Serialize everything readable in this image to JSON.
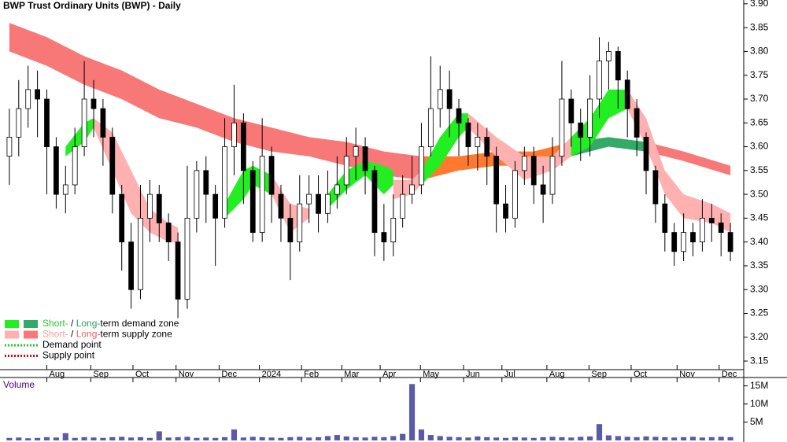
{
  "chart_data": {
    "type": "candlestick",
    "title": "BWP Trust Ordinary Units (BWP) - Daily",
    "xlim": [
      -1,
      78
    ],
    "xticks": [
      {
        "value": 4,
        "label": "Aug"
      },
      {
        "value": 8.7,
        "label": "Sep"
      },
      {
        "value": 13.2,
        "label": "Oct"
      },
      {
        "value": 17.8,
        "label": "Nov"
      },
      {
        "value": 22.4,
        "label": "Dec"
      },
      {
        "value": 26.7,
        "label": "2024"
      },
      {
        "value": 31.2,
        "label": "Feb"
      },
      {
        "value": 35.5,
        "label": "Mar"
      },
      {
        "value": 39.6,
        "label": "Apr"
      },
      {
        "value": 43.9,
        "label": "May"
      },
      {
        "value": 48.5,
        "label": "Jun"
      },
      {
        "value": 52.6,
        "label": "Jul"
      },
      {
        "value": 57.4,
        "label": "Aug"
      },
      {
        "value": 61.9,
        "label": "Sep"
      },
      {
        "value": 66.4,
        "label": "Oct"
      },
      {
        "value": 71.3,
        "label": "Nov"
      },
      {
        "value": 75.8,
        "label": "Dec"
      }
    ],
    "ylim": [
      3.132,
      3.908
    ],
    "yticks": [
      {
        "value": 3.9,
        "label": "3.90"
      },
      3.85,
      {
        "value": 3.8,
        "label": "3.80"
      },
      3.75,
      {
        "value": 3.7,
        "label": "3.70"
      },
      3.65,
      {
        "value": 3.6,
        "label": "3.60"
      },
      3.55,
      {
        "value": 3.5,
        "label": "3.50"
      },
      3.45,
      {
        "value": 3.4,
        "label": "3.40"
      },
      3.35,
      {
        "value": 3.3,
        "label": "3.30"
      },
      3.25,
      {
        "value": 3.2,
        "label": "3.20"
      },
      3.15
    ],
    "grid": false,
    "up_color": "#ffffff",
    "down_color": "#000000",
    "open": [
      3.58,
      3.62,
      3.68,
      3.72,
      3.7,
      3.6,
      3.5,
      3.52,
      3.6,
      3.7,
      3.68,
      3.62,
      3.5,
      3.4,
      3.3,
      3.45,
      3.5,
      3.44,
      3.4,
      3.28,
      3.45,
      3.55,
      3.5,
      3.45,
      3.6,
      3.65,
      3.55,
      3.42,
      3.58,
      3.5,
      3.45,
      3.4,
      3.48,
      3.5,
      3.46,
      3.5,
      3.52,
      3.58,
      3.6,
      3.55,
      3.42,
      3.4,
      3.45,
      3.5,
      3.52,
      3.6,
      3.68,
      3.72,
      3.68,
      3.65,
      3.6,
      3.62,
      3.58,
      3.48,
      3.45,
      3.55,
      3.58,
      3.52,
      3.5,
      3.58,
      3.7,
      3.65,
      3.62,
      3.7,
      3.78,
      3.8,
      3.74,
      3.68,
      3.62,
      3.55,
      3.48,
      3.42,
      3.38,
      3.42,
      3.4,
      3.45,
      3.44,
      3.42
    ],
    "high": [
      3.68,
      3.74,
      3.77,
      3.76,
      3.72,
      3.62,
      3.56,
      3.64,
      3.78,
      3.74,
      3.7,
      3.64,
      3.52,
      3.44,
      3.52,
      3.53,
      3.52,
      3.46,
      3.42,
      3.56,
      3.57,
      3.58,
      3.52,
      3.66,
      3.73,
      3.67,
      3.57,
      3.66,
      3.6,
      3.52,
      3.48,
      3.54,
      3.54,
      3.54,
      3.55,
      3.58,
      3.62,
      3.64,
      3.62,
      3.56,
      3.48,
      3.5,
      3.54,
      3.58,
      3.65,
      3.79,
      3.77,
      3.76,
      3.7,
      3.66,
      3.65,
      3.64,
      3.6,
      3.52,
      3.57,
      3.6,
      3.6,
      3.56,
      3.62,
      3.78,
      3.72,
      3.68,
      3.75,
      3.83,
      3.82,
      3.81,
      3.76,
      3.7,
      3.63,
      3.56,
      3.5,
      3.44,
      3.46,
      3.44,
      3.49,
      3.48,
      3.46,
      3.44
    ],
    "low": [
      3.52,
      3.58,
      3.64,
      3.62,
      3.5,
      3.47,
      3.46,
      3.5,
      3.58,
      3.62,
      3.56,
      3.46,
      3.34,
      3.26,
      3.28,
      3.4,
      3.4,
      3.36,
      3.24,
      3.26,
      3.42,
      3.44,
      3.35,
      3.43,
      3.54,
      3.48,
      3.4,
      3.4,
      3.44,
      3.4,
      3.32,
      3.38,
      3.44,
      3.42,
      3.44,
      3.47,
      3.5,
      3.53,
      3.5,
      3.37,
      3.36,
      3.37,
      3.43,
      3.48,
      3.5,
      3.58,
      3.64,
      3.62,
      3.58,
      3.56,
      3.55,
      3.52,
      3.42,
      3.42,
      3.43,
      3.52,
      3.48,
      3.44,
      3.48,
      3.56,
      3.6,
      3.57,
      3.58,
      3.66,
      3.72,
      3.68,
      3.62,
      3.58,
      3.5,
      3.44,
      3.38,
      3.35,
      3.36,
      3.37,
      3.38,
      3.4,
      3.37,
      3.36
    ],
    "close": [
      3.62,
      3.68,
      3.72,
      3.7,
      3.6,
      3.5,
      3.52,
      3.6,
      3.7,
      3.68,
      3.62,
      3.5,
      3.4,
      3.3,
      3.45,
      3.5,
      3.44,
      3.4,
      3.28,
      3.45,
      3.55,
      3.5,
      3.45,
      3.6,
      3.65,
      3.55,
      3.42,
      3.58,
      3.5,
      3.45,
      3.4,
      3.48,
      3.5,
      3.46,
      3.5,
      3.52,
      3.58,
      3.6,
      3.55,
      3.42,
      3.4,
      3.45,
      3.5,
      3.52,
      3.6,
      3.68,
      3.72,
      3.68,
      3.65,
      3.6,
      3.62,
      3.58,
      3.48,
      3.45,
      3.55,
      3.58,
      3.52,
      3.5,
      3.58,
      3.7,
      3.65,
      3.62,
      3.7,
      3.78,
      3.8,
      3.74,
      3.68,
      3.62,
      3.55,
      3.48,
      3.42,
      3.38,
      3.42,
      3.4,
      3.45,
      3.44,
      3.42,
      3.38
    ],
    "zones": [
      {
        "color": "#f87878",
        "x": [
          0,
          4,
          8,
          12,
          16,
          20,
          24,
          28,
          32,
          36,
          40,
          44
        ],
        "upper": [
          3.86,
          3.83,
          3.79,
          3.76,
          3.72,
          3.69,
          3.66,
          3.64,
          3.62,
          3.61,
          3.59,
          3.58
        ],
        "lower": [
          3.8,
          3.77,
          3.73,
          3.7,
          3.66,
          3.64,
          3.61,
          3.59,
          3.58,
          3.56,
          3.54,
          3.53
        ]
      },
      {
        "color": "#ff7a30",
        "x": [
          44,
          48,
          52,
          56,
          60
        ],
        "upper": [
          3.58,
          3.58,
          3.59,
          3.59,
          3.61
        ],
        "lower": [
          3.53,
          3.55,
          3.56,
          3.56,
          3.58
        ]
      },
      {
        "color": "#33aa66",
        "x": [
          60,
          64,
          68
        ],
        "upper": [
          3.61,
          3.62,
          3.61
        ],
        "lower": [
          3.58,
          3.6,
          3.59
        ]
      },
      {
        "color": "#f87878",
        "x": [
          68,
          72,
          77
        ],
        "upper": [
          3.61,
          3.59,
          3.56
        ],
        "lower": [
          3.59,
          3.57,
          3.54
        ]
      },
      {
        "color": "#22ee22",
        "x": [
          6,
          8,
          9
        ],
        "upper": [
          3.6,
          3.65,
          3.66
        ],
        "lower": [
          3.58,
          3.61,
          3.64
        ]
      },
      {
        "color": "#ffb0b0",
        "x": [
          9,
          11,
          13,
          15,
          17,
          18
        ],
        "upper": [
          3.66,
          3.63,
          3.55,
          3.47,
          3.44,
          3.43
        ],
        "lower": [
          3.64,
          3.55,
          3.46,
          3.42,
          3.4,
          3.4
        ]
      },
      {
        "color": "#22ee22",
        "x": [
          23,
          25,
          26,
          28
        ],
        "upper": [
          3.48,
          3.55,
          3.56,
          3.54
        ],
        "lower": [
          3.45,
          3.49,
          3.52,
          3.5
        ]
      },
      {
        "color": "#ffb0b0",
        "x": [
          28,
          30,
          32
        ],
        "upper": [
          3.54,
          3.48,
          3.47
        ],
        "lower": [
          3.5,
          3.42,
          3.45
        ]
      },
      {
        "color": "#22ee22",
        "x": [
          34,
          36,
          38,
          40,
          41
        ],
        "upper": [
          3.5,
          3.55,
          3.57,
          3.56,
          3.55
        ],
        "lower": [
          3.47,
          3.51,
          3.54,
          3.5,
          3.52
        ]
      },
      {
        "color": "#ffb0b0",
        "x": [
          41,
          43,
          44
        ],
        "upper": [
          3.53,
          3.53,
          3.55
        ],
        "lower": [
          3.49,
          3.5,
          3.52
        ]
      },
      {
        "color": "#22ee22",
        "x": [
          44,
          46,
          48,
          49
        ],
        "upper": [
          3.55,
          3.62,
          3.67,
          3.67
        ],
        "lower": [
          3.52,
          3.56,
          3.62,
          3.64
        ]
      },
      {
        "color": "#ffb0b0",
        "x": [
          49,
          52,
          55,
          58,
          60
        ],
        "upper": [
          3.67,
          3.62,
          3.58,
          3.58,
          3.62
        ],
        "lower": [
          3.64,
          3.58,
          3.53,
          3.55,
          3.58
        ]
      },
      {
        "color": "#22ee22",
        "x": [
          60,
          62,
          64,
          66
        ],
        "upper": [
          3.62,
          3.66,
          3.72,
          3.72
        ],
        "lower": [
          3.58,
          3.6,
          3.66,
          3.68
        ]
      },
      {
        "color": "#ffb0b0",
        "x": [
          66,
          68,
          70,
          72,
          75,
          77
        ],
        "upper": [
          3.72,
          3.66,
          3.55,
          3.5,
          3.48,
          3.46
        ],
        "lower": [
          3.68,
          3.6,
          3.5,
          3.45,
          3.44,
          3.42
        ]
      }
    ],
    "legend": [
      {
        "swatches": [
          "#22ee22",
          "#33aa66"
        ],
        "parts": [
          {
            "text": "Short-",
            "color": "#22cc22"
          },
          {
            "text": " / "
          },
          {
            "text": "Long-",
            "color": "#2e9e5e"
          },
          {
            "text": "term demand zone"
          }
        ]
      },
      {
        "swatches": [
          "#ffb0b0",
          "#f87878"
        ],
        "parts": [
          {
            "text": "Short-",
            "color": "#ff9a9a"
          },
          {
            "text": " / "
          },
          {
            "text": "Long-",
            "color": "#f06060"
          },
          {
            "text": "term supply zone"
          }
        ]
      },
      {
        "dots": "#22cc22",
        "parts": [
          {
            "text": "Demand point"
          }
        ]
      },
      {
        "dots": "#dd0000",
        "parts": [
          {
            "text": "Supply point"
          }
        ]
      }
    ],
    "volume": {
      "label": "Volume",
      "color": "#5a5aa8",
      "ylim": [
        0,
        17300000
      ],
      "yticks": [
        {
          "value": 5000000,
          "label": "5M"
        },
        {
          "value": 10000000,
          "label": "10M"
        },
        {
          "value": 15000000,
          "label": "15M"
        }
      ],
      "values": [
        700000,
        800000,
        600000,
        700000,
        900000,
        800000,
        2000000,
        700000,
        900000,
        800000,
        700000,
        900000,
        1000000,
        800000,
        900000,
        700000,
        2500000,
        800000,
        900000,
        1000000,
        700000,
        800000,
        700000,
        900000,
        3000000,
        800000,
        1000000,
        900000,
        800000,
        700000,
        900000,
        1000000,
        800000,
        900000,
        1200000,
        1500000,
        1100000,
        900000,
        800000,
        1000000,
        900000,
        1200000,
        1800000,
        15500000,
        3000000,
        1500000,
        1200000,
        1000000,
        900000,
        800000,
        1100000,
        900000,
        800000,
        700000,
        900000,
        800000,
        700000,
        900000,
        1000000,
        900000,
        800000,
        1000000,
        1100000,
        4500000,
        1400000,
        1200000,
        1000000,
        900000,
        1100000,
        1000000,
        900000,
        800000,
        900000,
        1000000,
        800000,
        900000,
        1000000,
        900000
      ]
    }
  }
}
